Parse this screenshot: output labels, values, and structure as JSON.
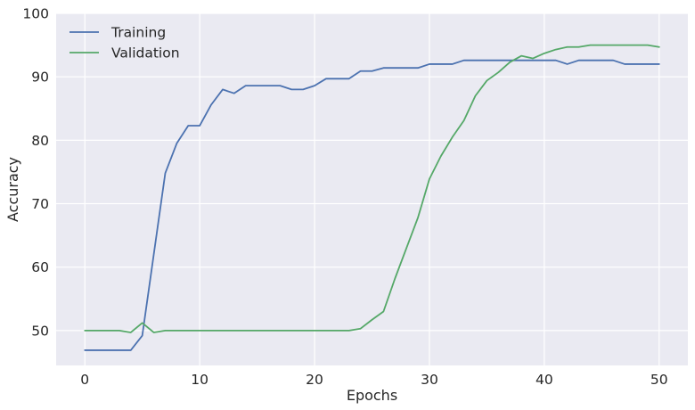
{
  "chart_data": {
    "type": "line",
    "title": "",
    "xlabel": "Epochs",
    "ylabel": "Accuracy",
    "xlim": [
      -2.5,
      52.5
    ],
    "ylim": [
      44.5,
      100
    ],
    "xticks": [
      0,
      10,
      20,
      30,
      40,
      50
    ],
    "yticks": [
      50,
      60,
      70,
      80,
      90,
      100
    ],
    "grid": true,
    "legend_position": "top-left",
    "x": [
      0,
      1,
      2,
      3,
      4,
      5,
      6,
      7,
      8,
      9,
      10,
      11,
      12,
      13,
      14,
      15,
      16,
      17,
      18,
      19,
      20,
      21,
      22,
      23,
      24,
      25,
      26,
      27,
      28,
      29,
      30,
      31,
      32,
      33,
      34,
      35,
      36,
      37,
      38,
      39,
      40,
      41,
      42,
      43,
      44,
      45,
      46,
      47,
      48,
      49,
      50
    ],
    "series": [
      {
        "name": "Training",
        "color": "#4c72b0",
        "values": [
          46.9,
          46.9,
          46.9,
          46.9,
          46.9,
          49.2,
          62.0,
          74.8,
          79.5,
          82.3,
          82.3,
          85.6,
          88.0,
          87.4,
          88.6,
          88.6,
          88.6,
          88.6,
          88.0,
          88.0,
          88.6,
          89.7,
          89.7,
          89.7,
          90.9,
          90.9,
          91.4,
          91.4,
          91.4,
          91.4,
          92.0,
          92.0,
          92.0,
          92.6,
          92.6,
          92.6,
          92.6,
          92.6,
          92.6,
          92.6,
          92.6,
          92.6,
          92.0,
          92.6,
          92.6,
          92.6,
          92.6,
          92.0,
          92.0,
          92.0,
          92.0
        ]
      },
      {
        "name": "Validation",
        "color": "#55a868",
        "values": [
          50.0,
          50.0,
          50.0,
          50.0,
          49.7,
          51.2,
          49.7,
          50.0,
          50.0,
          50.0,
          50.0,
          50.0,
          50.0,
          50.0,
          50.0,
          50.0,
          50.0,
          50.0,
          50.0,
          50.0,
          50.0,
          50.0,
          50.0,
          50.0,
          50.3,
          51.7,
          53.0,
          58.2,
          63.0,
          67.8,
          73.9,
          77.5,
          80.5,
          83.1,
          87.0,
          89.4,
          90.7,
          92.3,
          93.3,
          92.9,
          93.7,
          94.3,
          94.7,
          94.7,
          95.0,
          95.0,
          95.0,
          95.0,
          95.0,
          95.0,
          94.7
        ]
      }
    ]
  }
}
